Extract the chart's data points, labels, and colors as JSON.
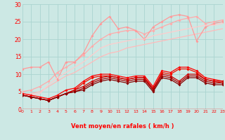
{
  "bg_color": "#cce8e4",
  "grid_color": "#aad4d0",
  "xlabel": "Vent moyen/en rafales ( km/h )",
  "xlabel_color": "#ff0000",
  "tick_color": "#ff0000",
  "axis_line_color": "#ff0000",
  "ylim": [
    0,
    30
  ],
  "xlim": [
    0,
    23
  ],
  "yticks": [
    0,
    5,
    10,
    15,
    20,
    25,
    30
  ],
  "lines": [
    {
      "y": [
        4.0,
        4.5,
        5.0,
        6.5,
        8.0,
        9.5,
        10.5,
        12.0,
        13.5,
        15.0,
        16.0,
        16.5,
        17.5,
        18.0,
        18.5,
        19.0,
        19.5,
        20.0,
        20.5,
        21.0,
        21.5,
        22.0,
        22.5,
        23.0
      ],
      "color": "#ffbbbb",
      "lw": 0.9,
      "marker": null,
      "alpha": 1.0
    },
    {
      "y": [
        5.0,
        5.5,
        6.5,
        8.0,
        10.5,
        12.0,
        13.5,
        15.5,
        18.0,
        20.0,
        21.5,
        22.0,
        22.5,
        22.5,
        21.5,
        22.5,
        23.5,
        24.5,
        25.5,
        26.0,
        26.5,
        24.5,
        25.0,
        25.5
      ],
      "color": "#ffaaaa",
      "lw": 0.9,
      "marker": "D",
      "alpha": 1.0
    },
    {
      "y": [
        11.5,
        12.0,
        12.0,
        13.5,
        8.5,
        13.5,
        13.5,
        16.0,
        21.0,
        24.5,
        26.5,
        23.0,
        23.5,
        22.5,
        20.0,
        23.5,
        25.0,
        26.5,
        27.0,
        26.5,
        19.5,
        23.5,
        24.5,
        25.0
      ],
      "color": "#ff9999",
      "lw": 0.9,
      "marker": "D",
      "alpha": 1.0
    },
    {
      "y": [
        4.0,
        4.0,
        4.5,
        7.0,
        9.0,
        10.5,
        12.0,
        13.5,
        15.5,
        17.5,
        18.5,
        19.0,
        19.5,
        20.0,
        20.0,
        21.0,
        21.5,
        22.0,
        22.5,
        23.0,
        23.5,
        24.0,
        24.0,
        24.5
      ],
      "color": "#ffcccc",
      "lw": 0.9,
      "marker": null,
      "alpha": 1.0
    },
    {
      "y": [
        4.0,
        3.5,
        3.0,
        2.5,
        3.5,
        4.5,
        5.5,
        7.5,
        9.0,
        9.5,
        9.5,
        9.0,
        8.5,
        9.0,
        9.0,
        5.5,
        10.5,
        10.0,
        11.5,
        11.5,
        10.5,
        8.5,
        8.0,
        7.5
      ],
      "color": "#ee1100",
      "lw": 0.9,
      "marker": "D",
      "alpha": 1.0
    },
    {
      "y": [
        4.5,
        4.0,
        3.5,
        3.0,
        4.0,
        5.5,
        6.0,
        8.0,
        9.5,
        10.0,
        10.0,
        9.5,
        9.0,
        9.5,
        9.5,
        6.5,
        11.0,
        10.5,
        12.0,
        12.0,
        11.0,
        9.0,
        8.5,
        8.0
      ],
      "color": "#ff0000",
      "lw": 0.9,
      "marker": "D",
      "alpha": 1.0
    },
    {
      "y": [
        4.0,
        3.5,
        3.0,
        2.5,
        3.5,
        4.5,
        5.5,
        6.5,
        8.0,
        9.0,
        9.5,
        9.0,
        8.5,
        9.0,
        9.0,
        6.0,
        10.0,
        9.5,
        8.0,
        10.0,
        10.0,
        8.5,
        8.0,
        8.0
      ],
      "color": "#cc0000",
      "lw": 0.9,
      "marker": "D",
      "alpha": 1.0
    },
    {
      "y": [
        4.0,
        3.5,
        3.0,
        2.5,
        3.5,
        4.5,
        5.0,
        6.0,
        7.5,
        8.5,
        9.0,
        8.5,
        8.0,
        8.5,
        8.5,
        5.5,
        9.5,
        9.0,
        7.5,
        9.5,
        9.5,
        8.0,
        7.5,
        7.5
      ],
      "color": "#aa0000",
      "lw": 0.9,
      "marker": "D",
      "alpha": 1.0
    },
    {
      "y": [
        4.0,
        3.5,
        3.0,
        2.5,
        3.5,
        4.5,
        5.0,
        5.5,
        7.0,
        8.0,
        8.5,
        8.0,
        7.5,
        8.0,
        8.0,
        5.0,
        9.0,
        8.5,
        7.0,
        9.0,
        9.0,
        7.5,
        7.0,
        7.0
      ],
      "color": "#880000",
      "lw": 0.9,
      "marker": "D",
      "alpha": 1.0
    }
  ]
}
